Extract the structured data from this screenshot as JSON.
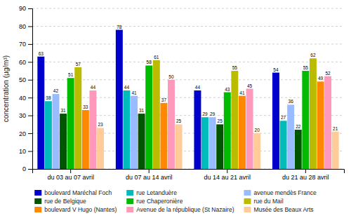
{
  "chart_data": {
    "type": "bar",
    "categories": [
      "du 03 au 07 avril",
      "du 07 au 14 avril",
      "du 14 au 21 avril",
      "du 21 au 28 avril"
    ],
    "series": [
      {
        "name": "boulevard Maréchal Foch",
        "color": "#0000CC",
        "values": [
          63,
          78,
          44,
          54
        ]
      },
      {
        "name": "rue Letanduère",
        "color": "#00BBBB",
        "values": [
          38,
          44,
          29,
          27
        ]
      },
      {
        "name": "avenue mendès France",
        "color": "#99BBFF",
        "values": [
          42,
          41,
          29,
          36
        ]
      },
      {
        "name": "rue de Belgique",
        "color": "#005500",
        "values": [
          31,
          31,
          25,
          22
        ]
      },
      {
        "name": "rue Chaperonière",
        "color": "#00BB00",
        "values": [
          51,
          58,
          43,
          55
        ]
      },
      {
        "name": "rue du Mail",
        "color": "#BBBB00",
        "values": [
          57,
          61,
          55,
          62
        ]
      },
      {
        "name": "boulevard V Hugo (Nantes)",
        "color": "#FF8800",
        "values": [
          33,
          37,
          41,
          49
        ]
      },
      {
        "name": "Avenue de la république (St Nazaire)",
        "color": "#FF99BB",
        "values": [
          44,
          50,
          45,
          52
        ]
      },
      {
        "name": "Musée des Beaux Arts",
        "color": "#FFCC99",
        "values": [
          23,
          25,
          20,
          21
        ]
      }
    ],
    "y_label": "concentration (µg/m³)",
    "ylim": [
      0,
      90
    ],
    "yticks": [
      0,
      10,
      20,
      30,
      40,
      50,
      60,
      70,
      80,
      90
    ],
    "grid": true,
    "legend": "bottom",
    "data_labels": true
  }
}
